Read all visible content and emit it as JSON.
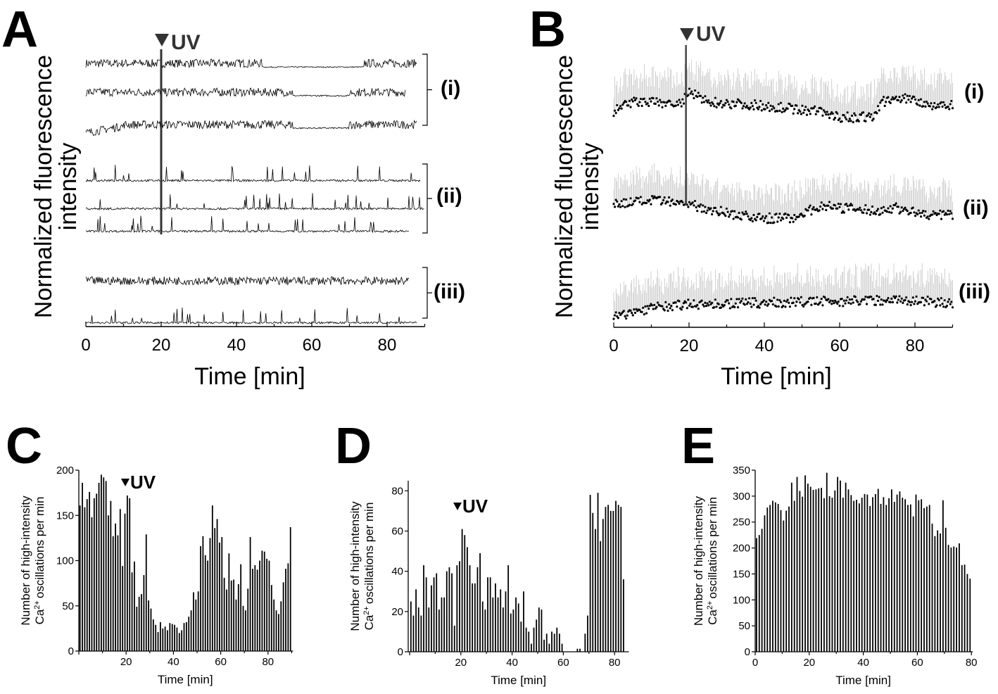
{
  "figure": {
    "panels": [
      "A",
      "B",
      "C",
      "D",
      "E"
    ],
    "uv_marker": "UV",
    "colors": {
      "trace": "#000000",
      "error_bars": "#b0b0b0",
      "uv_line": "#333333",
      "bars": "#000000"
    }
  },
  "chart_data": [
    {
      "panel": "A",
      "type": "line",
      "xlabel": "Time [min]",
      "ylabel_lines": [
        "Normalized fluorescence",
        "intensity"
      ],
      "xlim": [
        0,
        90
      ],
      "xticks": [
        0,
        20,
        40,
        60,
        80
      ],
      "uv_time": 20,
      "groups": [
        {
          "label": "(i)",
          "traces": 3
        },
        {
          "label": "(ii)",
          "traces": 3
        },
        {
          "label": "(iii)",
          "traces": 2
        }
      ],
      "y_ticks_shown": false
    },
    {
      "panel": "B",
      "type": "scatter",
      "xlabel": "Time [min]",
      "ylabel_lines": [
        "Normalized fluorescence",
        "intensity"
      ],
      "xlim": [
        0,
        90
      ],
      "xticks": [
        0,
        20,
        40,
        60,
        80
      ],
      "uv_time": 19,
      "error_bars": true,
      "groups": [
        {
          "label": "(i)",
          "mean_profile": [
            [
              0,
              0.3
            ],
            [
              5,
              0.55
            ],
            [
              18,
              0.5
            ],
            [
              20,
              0.8
            ],
            [
              25,
              0.55
            ],
            [
              40,
              0.45
            ],
            [
              55,
              0.3
            ],
            [
              60,
              0.15
            ],
            [
              69,
              0.15
            ],
            [
              71,
              0.55
            ],
            [
              78,
              0.65
            ],
            [
              85,
              0.45
            ],
            [
              90,
              0.5
            ]
          ]
        },
        {
          "label": "(ii)",
          "mean_profile": [
            [
              0,
              0.6
            ],
            [
              10,
              0.7
            ],
            [
              20,
              0.6
            ],
            [
              30,
              0.35
            ],
            [
              38,
              0.2
            ],
            [
              47,
              0.2
            ],
            [
              55,
              0.55
            ],
            [
              60,
              0.5
            ],
            [
              70,
              0.4
            ],
            [
              75,
              0.5
            ],
            [
              82,
              0.3
            ],
            [
              90,
              0.3
            ]
          ]
        },
        {
          "label": "(iii)",
          "mean_profile": [
            [
              0,
              0.1
            ],
            [
              10,
              0.4
            ],
            [
              20,
              0.5
            ],
            [
              40,
              0.55
            ],
            [
              60,
              0.6
            ],
            [
              75,
              0.65
            ],
            [
              90,
              0.55
            ]
          ]
        }
      ],
      "y_ticks_shown": false
    },
    {
      "panel": "C",
      "type": "bar",
      "xlabel": "Time [min]",
      "ylabel_lines": [
        "Number of high-intensity",
        "oscillations per min"
      ],
      "ylabel_ion": "Ca",
      "ylabel_charge": "2+",
      "ylim": [
        0,
        200
      ],
      "yticks": [
        0,
        50,
        100,
        150,
        200
      ],
      "xticks": [
        20,
        40,
        60,
        80
      ],
      "xlim": [
        0,
        90
      ],
      "uv_time": 20,
      "x_start": 1,
      "values": [
        161,
        186,
        159,
        168,
        176,
        148,
        169,
        174,
        186,
        195,
        192,
        188,
        150,
        166,
        127,
        141,
        128,
        157,
        94,
        152,
        172,
        169,
        87,
        99,
        49,
        60,
        63,
        84,
        129,
        56,
        47,
        35,
        29,
        21,
        32,
        25,
        27,
        23,
        31,
        30,
        29,
        26,
        20,
        23,
        31,
        32,
        38,
        45,
        65,
        57,
        66,
        116,
        127,
        106,
        100,
        125,
        161,
        136,
        146,
        120,
        126,
        81,
        68,
        108,
        78,
        79,
        57,
        74,
        96,
        50,
        45,
        69,
        126,
        91,
        95,
        90,
        100,
        111,
        110,
        102,
        100,
        73,
        57,
        45,
        41,
        55,
        76,
        91,
        97,
        137
      ]
    },
    {
      "panel": "D",
      "type": "bar",
      "xlabel": "Time [min]",
      "ylabel_lines": [
        "Number of high-intensity",
        "oscillations per min"
      ],
      "ylabel_ion": "Ca",
      "ylabel_charge": "2+",
      "ylim": [
        0,
        85
      ],
      "yticks": [
        0,
        20,
        40,
        60,
        80
      ],
      "xticks": [
        20,
        40,
        60,
        80
      ],
      "xlim": [
        0,
        85
      ],
      "uv_time": 20,
      "x_start": 1,
      "values": [
        25,
        18,
        31,
        22,
        18,
        43,
        37,
        22,
        33,
        37,
        39,
        21,
        27,
        27,
        40,
        42,
        39,
        13,
        43,
        45,
        61,
        58,
        52,
        43,
        34,
        34,
        42,
        49,
        25,
        21,
        37,
        37,
        27,
        34,
        27,
        31,
        22,
        30,
        43,
        19,
        21,
        27,
        24,
        15,
        30,
        12,
        10,
        4,
        12,
        16,
        22,
        21,
        6,
        9,
        4,
        10,
        9,
        12,
        9,
        4,
        0,
        0,
        0,
        0,
        0,
        1.5,
        1.5,
        0,
        9,
        18,
        78,
        69,
        61,
        79,
        55,
        66,
        72,
        73,
        70,
        70,
        75,
        73,
        72,
        36
      ]
    },
    {
      "panel": "E",
      "type": "bar",
      "xlabel": "Time [min]",
      "ylabel_lines": [
        "Number of high-intensity",
        "oscillations per min"
      ],
      "ylabel_ion": "Ca",
      "ylabel_charge": "2+",
      "ylim": [
        0,
        350
      ],
      "yticks": [
        0,
        50,
        100,
        150,
        200,
        250,
        300,
        350
      ],
      "xticks": [
        0,
        20,
        40,
        60,
        80
      ],
      "xlim": [
        0,
        80
      ],
      "x_start": 1,
      "values": [
        219,
        225,
        237,
        263,
        278,
        283,
        291,
        288,
        285,
        273,
        253,
        272,
        280,
        326,
        291,
        337,
        310,
        299,
        340,
        324,
        318,
        312,
        313,
        315,
        316,
        296,
        345,
        300,
        297,
        311,
        337,
        330,
        297,
        326,
        313,
        302,
        291,
        293,
        286,
        297,
        304,
        303,
        281,
        298,
        304,
        314,
        285,
        298,
        283,
        296,
        313,
        289,
        303,
        309,
        297,
        294,
        283,
        284,
        261,
        303,
        292,
        294,
        277,
        280,
        283,
        247,
        223,
        234,
        228,
        292,
        239,
        206,
        201,
        203,
        201,
        209,
        167,
        168,
        150,
        141
      ]
    }
  ]
}
